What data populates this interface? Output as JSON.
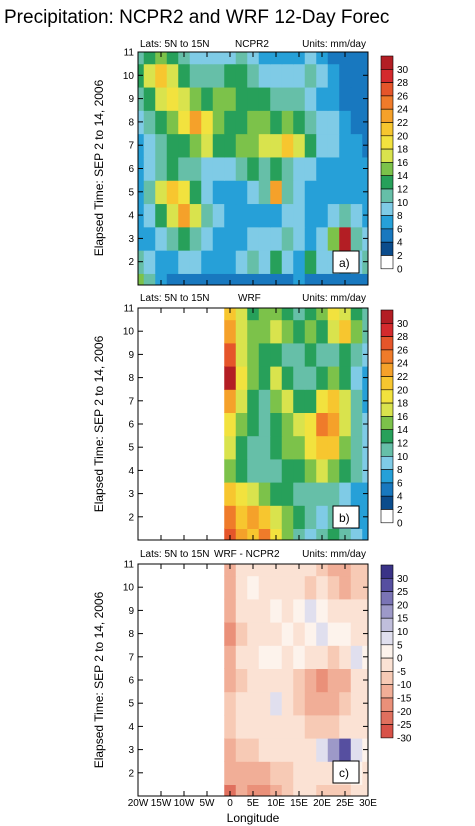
{
  "title": "Precipitation: NCPR2 and WRF 12-Day Forec",
  "x_axis": {
    "label": "Longitude",
    "ticks": [
      "20W",
      "15W",
      "10W",
      "5W",
      "0",
      "5E",
      "10E",
      "15E",
      "20E",
      "25E",
      "30E"
    ],
    "values": [
      -20,
      -15,
      -10,
      -5,
      0,
      5,
      10,
      15,
      20,
      25,
      30
    ],
    "range": [
      -20,
      30
    ]
  },
  "y_axis": {
    "label": "Elapsed Time: SEP 2 to 14, 2006",
    "ticks": [
      "2",
      "3",
      "4",
      "5",
      "6",
      "7",
      "8",
      "9",
      "10",
      "11"
    ],
    "range": [
      1,
      11
    ]
  },
  "colors": {
    "precip_scale": [
      "#ffffff",
      "#0b4c8c",
      "#1878bf",
      "#26a0d8",
      "#7fcbe6",
      "#66bfa8",
      "#27a05a",
      "#7cc24a",
      "#d9e34d",
      "#f2e23e",
      "#f7c62f",
      "#f5a12a",
      "#ef7b2a",
      "#e5552a",
      "#d42a2d",
      "#b31e24"
    ],
    "diff_scale": [
      "#3a3387",
      "#564fa0",
      "#7a74b5",
      "#9d99c8",
      "#c0bedb",
      "#e0dfee",
      "#fdf3ec",
      "#fbe2d4",
      "#f7cab5",
      "#f1ae97",
      "#ea9079",
      "#e0705e",
      "#d85248"
    ]
  },
  "chart_data": [
    {
      "type": "heatmap",
      "panel": "a)",
      "left_label": "Lats: 5N to 15N",
      "center_label": "NCPR2",
      "right_label": "Units: mm/day",
      "xlim": [
        -20,
        30
      ],
      "ylim": [
        1,
        11
      ],
      "colorbar_labels": [
        "0",
        "2",
        "4",
        "6",
        "8",
        "10",
        "12",
        "14",
        "16",
        "18",
        "20",
        "22",
        "24",
        "26",
        "28",
        "30"
      ],
      "x": [
        -20,
        -17.5,
        -15,
        -12.5,
        -10,
        -7.5,
        -5,
        -2.5,
        0,
        2.5,
        5,
        7.5,
        10,
        12.5,
        15,
        17.5,
        20,
        22.5,
        25,
        27.5,
        30
      ],
      "y": [
        1,
        2,
        3,
        4,
        5,
        6,
        7,
        8,
        9,
        10,
        11
      ],
      "z": [
        [
          12,
          8,
          4,
          2,
          2,
          2,
          2,
          2,
          2,
          2,
          2,
          2,
          2,
          2,
          4,
          2,
          2,
          2,
          2,
          2,
          2
        ],
        [
          8,
          6,
          4,
          4,
          6,
          6,
          4,
          4,
          4,
          6,
          8,
          6,
          10,
          6,
          4,
          10,
          6,
          6,
          4,
          6,
          8
        ],
        [
          4,
          4,
          6,
          8,
          10,
          8,
          6,
          4,
          4,
          4,
          6,
          6,
          6,
          8,
          6,
          4,
          6,
          12,
          30,
          8,
          6
        ],
        [
          4,
          6,
          10,
          14,
          20,
          14,
          8,
          6,
          4,
          4,
          4,
          4,
          4,
          6,
          6,
          4,
          4,
          6,
          8,
          6,
          4
        ],
        [
          4,
          8,
          14,
          18,
          16,
          10,
          6,
          4,
          4,
          4,
          6,
          8,
          20,
          8,
          6,
          4,
          4,
          4,
          4,
          4,
          4
        ],
        [
          4,
          6,
          8,
          10,
          8,
          8,
          6,
          6,
          6,
          8,
          10,
          8,
          10,
          8,
          6,
          6,
          4,
          4,
          4,
          4,
          4
        ],
        [
          4,
          6,
          8,
          10,
          10,
          12,
          14,
          10,
          10,
          12,
          12,
          14,
          14,
          18,
          14,
          10,
          6,
          6,
          4,
          4,
          2
        ],
        [
          6,
          8,
          10,
          12,
          16,
          20,
          16,
          12,
          10,
          10,
          12,
          12,
          10,
          12,
          10,
          8,
          6,
          6,
          4,
          2,
          2
        ],
        [
          8,
          10,
          14,
          16,
          14,
          12,
          10,
          12,
          12,
          10,
          10,
          10,
          8,
          8,
          8,
          6,
          4,
          4,
          2,
          2,
          2
        ],
        [
          10,
          14,
          18,
          14,
          10,
          8,
          8,
          8,
          10,
          10,
          8,
          6,
          6,
          6,
          6,
          8,
          6,
          4,
          2,
          2,
          2
        ],
        [
          8,
          10,
          12,
          10,
          8,
          6,
          6,
          6,
          6,
          8,
          6,
          4,
          4,
          4,
          4,
          6,
          4,
          2,
          2,
          2,
          2
        ]
      ]
    },
    {
      "type": "heatmap",
      "panel": "b)",
      "left_label": "Lats: 5N to 15N",
      "center_label": "WRF",
      "right_label": "Units: mm/day",
      "xlim": [
        -20,
        30
      ],
      "ylim": [
        1,
        11
      ],
      "colorbar_labels": [
        "0",
        "2",
        "4",
        "6",
        "8",
        "10",
        "12",
        "14",
        "16",
        "18",
        "20",
        "22",
        "24",
        "26",
        "28",
        "30"
      ],
      "x": [
        0,
        2.5,
        5,
        7.5,
        10,
        12.5,
        15,
        17.5,
        20,
        22.5,
        25,
        27.5,
        30
      ],
      "y": [
        1,
        2,
        3,
        4,
        5,
        6,
        7,
        8,
        9,
        10,
        11
      ],
      "z": [
        [
          24,
          20,
          18,
          22,
          16,
          12,
          8,
          6,
          8,
          10,
          8,
          6,
          4
        ],
        [
          22,
          18,
          20,
          18,
          14,
          12,
          10,
          8,
          6,
          8,
          6,
          4,
          4
        ],
        [
          18,
          16,
          14,
          12,
          10,
          10,
          8,
          8,
          8,
          8,
          6,
          4,
          4
        ],
        [
          12,
          10,
          8,
          8,
          8,
          10,
          10,
          12,
          14,
          12,
          10,
          8,
          6
        ],
        [
          14,
          10,
          8,
          8,
          10,
          12,
          12,
          16,
          18,
          18,
          12,
          8,
          6
        ],
        [
          16,
          12,
          10,
          8,
          10,
          12,
          14,
          16,
          22,
          20,
          14,
          8,
          6
        ],
        [
          20,
          14,
          10,
          8,
          12,
          14,
          10,
          10,
          16,
          18,
          14,
          8,
          4
        ],
        [
          28,
          16,
          12,
          10,
          14,
          10,
          8,
          8,
          10,
          12,
          10,
          6,
          4
        ],
        [
          24,
          14,
          12,
          10,
          10,
          8,
          8,
          10,
          8,
          8,
          10,
          8,
          6
        ],
        [
          20,
          14,
          12,
          12,
          14,
          12,
          10,
          12,
          10,
          14,
          18,
          12,
          8
        ],
        [
          18,
          14,
          10,
          12,
          12,
          10,
          8,
          10,
          12,
          16,
          14,
          10,
          8
        ]
      ]
    },
    {
      "type": "heatmap",
      "panel": "c)",
      "left_label": "Lats: 5N to 15N",
      "center_label": "WRF - NCPR2",
      "right_label": "Units: mm/day",
      "xlim": [
        -20,
        30
      ],
      "ylim": [
        1,
        11
      ],
      "colorbar_labels": [
        "30",
        "25",
        "20",
        "15",
        "10",
        "5",
        "0",
        "-5",
        "-10",
        "-15",
        "-20",
        "-25",
        "-30"
      ],
      "x": [
        0,
        2.5,
        5,
        7.5,
        10,
        12.5,
        15,
        17.5,
        20,
        22.5,
        25,
        27.5,
        30
      ],
      "y": [
        1,
        2,
        3,
        4,
        5,
        6,
        7,
        8,
        9,
        10,
        11
      ],
      "z": [
        [
          20,
          14,
          16,
          18,
          12,
          8,
          4,
          4,
          6,
          8,
          6,
          4,
          2
        ],
        [
          14,
          10,
          12,
          12,
          8,
          6,
          2,
          2,
          2,
          2,
          0,
          -2,
          0
        ],
        [
          10,
          8,
          6,
          4,
          4,
          2,
          2,
          0,
          -6,
          -18,
          -28,
          -8,
          -2
        ],
        [
          6,
          4,
          2,
          2,
          2,
          2,
          2,
          6,
          8,
          6,
          2,
          2,
          2
        ],
        [
          8,
          4,
          2,
          0,
          -6,
          4,
          6,
          12,
          14,
          14,
          8,
          4,
          2
        ],
        [
          10,
          6,
          2,
          0,
          2,
          4,
          6,
          10,
          16,
          14,
          10,
          4,
          2
        ],
        [
          10,
          4,
          0,
          -2,
          -2,
          0,
          -4,
          0,
          4,
          6,
          4,
          -6,
          -2
        ],
        [
          16,
          6,
          2,
          0,
          2,
          -2,
          0,
          -4,
          -6,
          -4,
          -2,
          0,
          2
        ],
        [
          14,
          4,
          0,
          0,
          -2,
          0,
          -2,
          -6,
          -2,
          2,
          4,
          4,
          4
        ],
        [
          10,
          2,
          -2,
          0,
          4,
          4,
          4,
          6,
          4,
          6,
          10,
          8,
          6
        ],
        [
          10,
          4,
          0,
          2,
          4,
          4,
          2,
          4,
          8,
          10,
          10,
          8,
          6
        ]
      ]
    }
  ]
}
